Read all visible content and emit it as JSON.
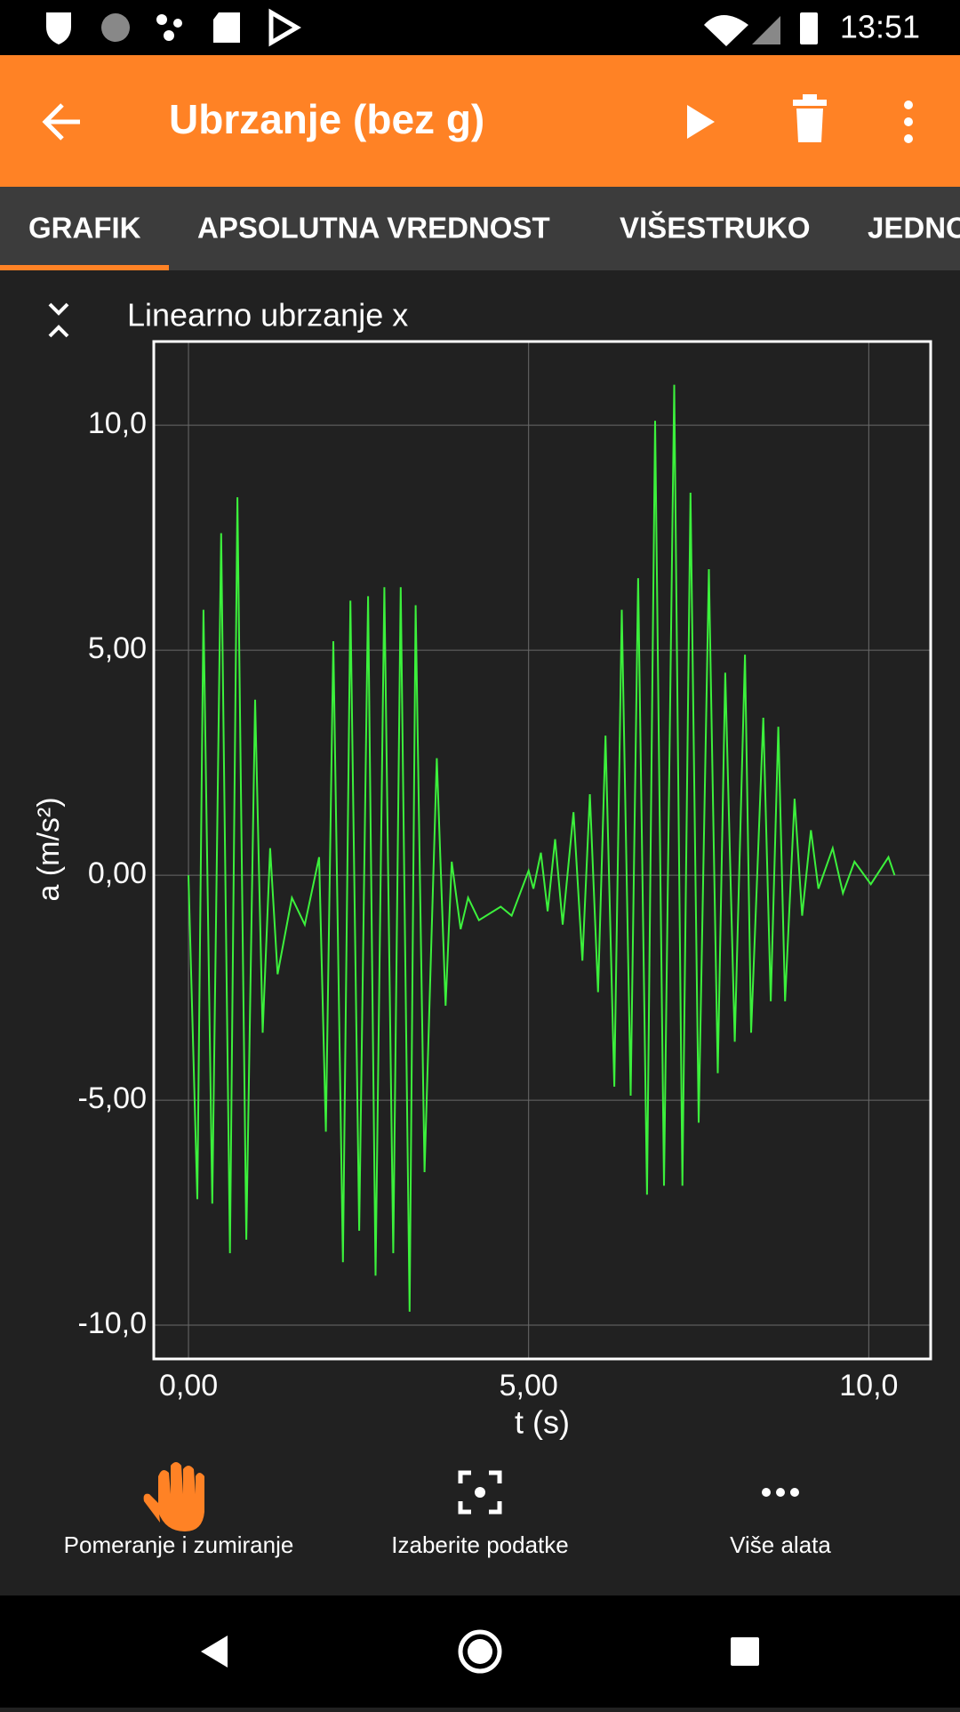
{
  "status_bar": {
    "time": "13:51"
  },
  "app_bar": {
    "title": "Ubrzanje (bez g)"
  },
  "tabs": [
    "GRAFIK",
    "APSOLUTNA VREDNOST",
    "VIŠESTRUKO",
    "JEDNO"
  ],
  "chart_data": {
    "type": "line",
    "title": "Linearno ubrzanje x",
    "x_label": "t (s)",
    "y_label": "a (m/s²)",
    "x": [
      0,
      0.13,
      0.22,
      0.35,
      0.48,
      0.61,
      0.72,
      0.85,
      0.98,
      1.09,
      1.2,
      1.31,
      1.52,
      1.71,
      1.92,
      2.02,
      2.13,
      2.27,
      2.38,
      2.51,
      2.64,
      2.75,
      2.88,
      3.01,
      3.12,
      3.25,
      3.34,
      3.47,
      3.65,
      3.78,
      3.87,
      4.0,
      4.11,
      4.27,
      4.59,
      4.75,
      5.0,
      5.07,
      5.18,
      5.28,
      5.39,
      5.5,
      5.66,
      5.79,
      5.9,
      6.02,
      6.13,
      6.26,
      6.37,
      6.5,
      6.61,
      6.74,
      6.86,
      6.99,
      7.14,
      7.26,
      7.38,
      7.5,
      7.65,
      7.78,
      7.89,
      8.03,
      8.18,
      8.27,
      8.45,
      8.56,
      8.67,
      8.77,
      8.91,
      9.02,
      9.15,
      9.26,
      9.47,
      9.62,
      9.79,
      10.03,
      10.29,
      10.38
    ],
    "values": [
      0,
      -7.2,
      5.9,
      -7.3,
      7.6,
      -8.4,
      8.4,
      -8.1,
      3.9,
      -3.5,
      0.6,
      -2.2,
      -0.5,
      -1.1,
      0.4,
      -5.7,
      5.2,
      -8.6,
      6.1,
      -7.9,
      6.2,
      -8.9,
      6.4,
      -8.4,
      6.4,
      -9.7,
      6.0,
      -6.6,
      2.6,
      -2.9,
      0.3,
      -1.2,
      -0.5,
      -1.0,
      -0.7,
      -0.9,
      0.1,
      -0.3,
      0.5,
      -0.8,
      0.8,
      -1.1,
      1.4,
      -1.9,
      1.8,
      -2.6,
      3.1,
      -4.7,
      5.9,
      -4.9,
      6.6,
      -7.1,
      10.1,
      -6.9,
      10.9,
      -6.9,
      8.5,
      -5.5,
      6.8,
      -4.4,
      4.5,
      -3.7,
      4.9,
      -3.5,
      3.5,
      -2.8,
      3.3,
      -2.8,
      1.7,
      -0.9,
      1.0,
      -0.3,
      0.6,
      -0.4,
      0.3,
      -0.2,
      0.4,
      0.0
    ],
    "color": "#3cf03c",
    "xlim": [
      -0.51,
      10.91
    ],
    "ylim": [
      -10.75,
      11.86
    ],
    "xticks": [
      {
        "value": 0,
        "label": "0,00"
      },
      {
        "value": 5,
        "label": "5,00"
      },
      {
        "value": 10,
        "label": "10,0"
      }
    ],
    "yticks": [
      {
        "value": -10,
        "label": "-10,0"
      },
      {
        "value": -5,
        "label": "-5,00"
      },
      {
        "value": 0,
        "label": "0,00"
      },
      {
        "value": 5,
        "label": "5,00"
      },
      {
        "value": 10,
        "label": "10,0"
      }
    ],
    "grid": true
  },
  "tools": [
    "Pomeranje i zumiranje",
    "Izaberite podatke",
    "Više alata"
  ]
}
